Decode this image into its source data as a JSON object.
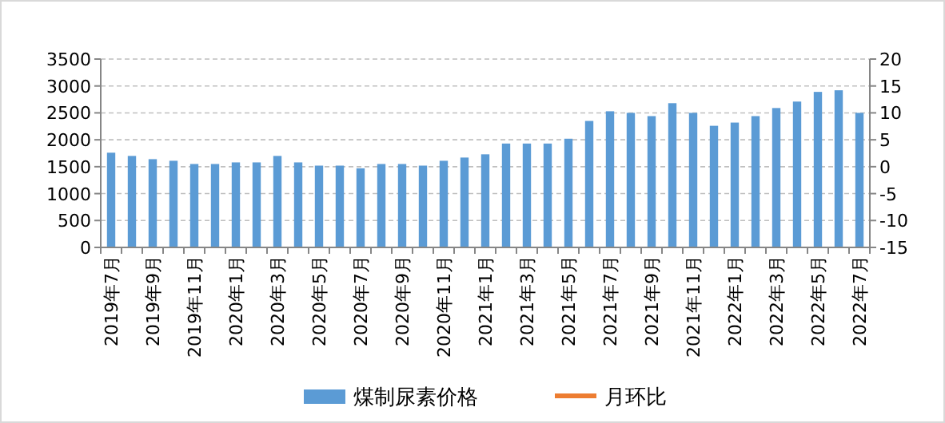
{
  "chart_data": {
    "type": "bar",
    "categories": [
      "2019年7月",
      null,
      "2019年9月",
      null,
      "2019年11月",
      null,
      "2020年1月",
      null,
      "2020年3月",
      null,
      "2020年5月",
      null,
      "2020年7月",
      null,
      "2020年9月",
      null,
      "2020年11月",
      null,
      "2021年1月",
      null,
      "2021年3月",
      null,
      "2021年5月",
      null,
      "2021年7月",
      null,
      "2021年9月",
      null,
      "2021年11月",
      null,
      "2022年1月",
      null,
      "2022年3月",
      null,
      "2022年5月",
      null,
      "2022年7月"
    ],
    "series": [
      {
        "name": "煤制尿素价格",
        "color": "#5b9bd5",
        "values": [
          1760,
          1700,
          1640,
          1610,
          1550,
          1550,
          1580,
          1580,
          1700,
          1580,
          1520,
          1520,
          1470,
          1550,
          1550,
          1520,
          1610,
          1670,
          1730,
          1930,
          1930,
          1930,
          2020,
          2350,
          2530,
          2500,
          2440,
          2680,
          2500,
          2260,
          2320,
          2440,
          2590,
          2710,
          2890,
          2920,
          2500
        ]
      },
      {
        "name": "月环比",
        "type": "line",
        "axis": "y2",
        "color": "#ed7d31",
        "values": [
          null,
          null,
          null,
          null,
          null,
          null,
          null,
          null,
          null,
          null,
          null,
          null,
          null,
          null,
          null,
          null,
          null,
          null,
          null,
          null,
          null,
          null,
          null,
          null,
          null,
          null,
          null,
          null,
          null,
          null,
          null,
          null,
          null,
          null,
          null,
          null,
          null
        ]
      }
    ],
    "ylim": [
      0,
      3500
    ],
    "yticks": [
      0,
      500,
      1000,
      1500,
      2000,
      2500,
      3000,
      3500
    ],
    "y2lim": [
      -15,
      20
    ],
    "y2ticks": [
      -15,
      -10,
      -5,
      0,
      5,
      10,
      15,
      20
    ],
    "grid": "y",
    "legend": "bottom"
  }
}
